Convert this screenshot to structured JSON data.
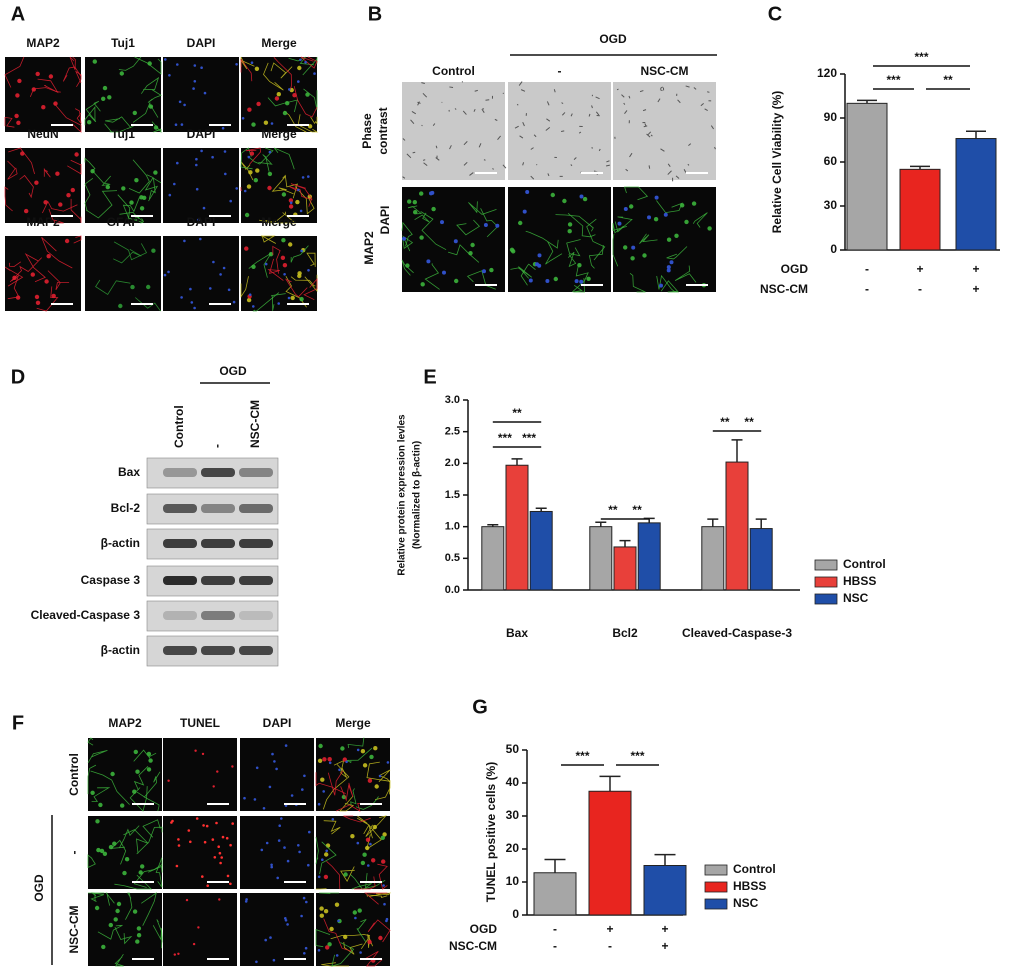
{
  "figure": {
    "A": {
      "label": "A",
      "rows": [
        [
          "MAP2",
          "Tuj1",
          "DAPI",
          "Merge"
        ],
        [
          "NeuN",
          "Tuj1",
          "DAPI",
          "Merge"
        ],
        [
          "MAP2",
          "GFAP",
          "DAPI",
          "Merge"
        ]
      ],
      "header_colors": [
        "#e8222c",
        "#5cb83c",
        "#2b4fb5",
        "#111111"
      ]
    },
    "B": {
      "label": "B",
      "group": "OGD",
      "columns": [
        "Control",
        "-",
        "NSC-CM"
      ],
      "row_labels": [
        [
          "Phase",
          "contrast"
        ],
        [
          "MAP2",
          "DAPI"
        ]
      ],
      "row_label_colors": [
        [
          "#111111",
          "#111111"
        ],
        [
          "#5cb83c",
          "#2b4fb5"
        ]
      ]
    },
    "D": {
      "label": "D",
      "group": "OGD",
      "columns": [
        "Control",
        "-",
        "NSC-CM"
      ],
      "rows": [
        "Bax",
        "Bcl-2",
        "β-actin",
        "Caspase 3",
        "Cleaved-Caspase 3",
        "β-actin"
      ]
    },
    "F": {
      "label": "F",
      "group": "OGD",
      "columns": [
        "MAP2",
        "TUNEL",
        "DAPI",
        "Merge"
      ],
      "header_colors": [
        "#5cb83c",
        "#e8222c",
        "#2b4fb5",
        "#111111"
      ],
      "rows": [
        "Control",
        "-",
        "NSC-CM"
      ]
    }
  },
  "chart_data": [
    {
      "panel": "C",
      "type": "bar",
      "y_label": "Relative Cell Viability (%)",
      "values": [
        100,
        55,
        76
      ],
      "errors": [
        2,
        2,
        5
      ],
      "colors": [
        "#a6a6a6",
        "#e8251f",
        "#1f4ea8"
      ],
      "ylim": [
        0,
        120
      ],
      "yticks": [
        0,
        30,
        60,
        90,
        120
      ],
      "conditions": [
        {
          "name": "OGD",
          "marks": [
            "-",
            "+",
            "+"
          ]
        },
        {
          "name": "NSC-CM",
          "marks": [
            "-",
            "-",
            "+"
          ]
        }
      ],
      "significance": [
        {
          "from": 0,
          "to": 2,
          "label": "***"
        },
        {
          "from": 0,
          "to": 1,
          "label": "***"
        },
        {
          "from": 1,
          "to": 2,
          "label": "**"
        }
      ]
    },
    {
      "panel": "E",
      "type": "grouped_bar",
      "y_label": [
        "Relative protein expression  levles",
        "(Normalized to β-actin)"
      ],
      "categories": [
        "Bax",
        "Bcl2",
        "Cleaved-Caspase-3"
      ],
      "series": [
        {
          "name": "Control",
          "color": "#a6a6a6",
          "values": [
            1.0,
            1.0,
            1.0
          ],
          "errors": [
            0.03,
            0.07,
            0.12
          ]
        },
        {
          "name": "HBSS",
          "color": "#e8403a",
          "values": [
            1.97,
            0.68,
            2.02
          ],
          "errors": [
            0.1,
            0.1,
            0.35
          ]
        },
        {
          "name": "NSC",
          "color": "#1f4ea8",
          "values": [
            1.24,
            1.06,
            0.97
          ],
          "errors": [
            0.05,
            0.07,
            0.15
          ]
        }
      ],
      "ylim": [
        0,
        3
      ],
      "yticks": [
        {
          "value": 0,
          "label": "0.0"
        },
        {
          "value": 0.5,
          "label": "0.5"
        },
        {
          "value": 1,
          "label": "1.0"
        },
        {
          "value": 1.5,
          "label": "1.5"
        },
        {
          "value": 2,
          "label": "2.0"
        },
        {
          "value": 2.5,
          "label": "2.5"
        },
        {
          "value": 3,
          "label": "3.0"
        }
      ],
      "legend": "right",
      "significance": [
        {
          "category": 0,
          "from": 0,
          "to": 2,
          "label": "**"
        },
        {
          "category": 0,
          "from": 0,
          "to": 1,
          "label": "***"
        },
        {
          "category": 0,
          "from": 1,
          "to": 2,
          "label": "***"
        },
        {
          "category": 1,
          "from": 0,
          "to": 1,
          "label": "**"
        },
        {
          "category": 1,
          "from": 1,
          "to": 2,
          "label": "**"
        },
        {
          "category": 2,
          "from": 0,
          "to": 1,
          "label": "**"
        },
        {
          "category": 2,
          "from": 1,
          "to": 2,
          "label": "**"
        }
      ]
    },
    {
      "panel": "G",
      "type": "bar",
      "y_label": "TUNEL positive cells (%)",
      "values": [
        12.8,
        37.5,
        15
      ],
      "errors": [
        4,
        4.5,
        3.3
      ],
      "colors": [
        "#a6a6a6",
        "#e8251f",
        "#1f4ea8"
      ],
      "legend_labels": [
        "Control",
        "HBSS",
        "NSC"
      ],
      "legend": "right",
      "ylim": [
        0,
        50
      ],
      "yticks": [
        0,
        10,
        20,
        30,
        40,
        50
      ],
      "conditions": [
        {
          "name": "OGD",
          "marks": [
            "-",
            "+",
            "+"
          ]
        },
        {
          "name": "NSC-CM",
          "marks": [
            "-",
            "-",
            "+"
          ]
        }
      ],
      "significance": [
        {
          "from": 0,
          "to": 1,
          "label": "***"
        },
        {
          "from": 1,
          "to": 2,
          "label": "***"
        }
      ]
    }
  ]
}
